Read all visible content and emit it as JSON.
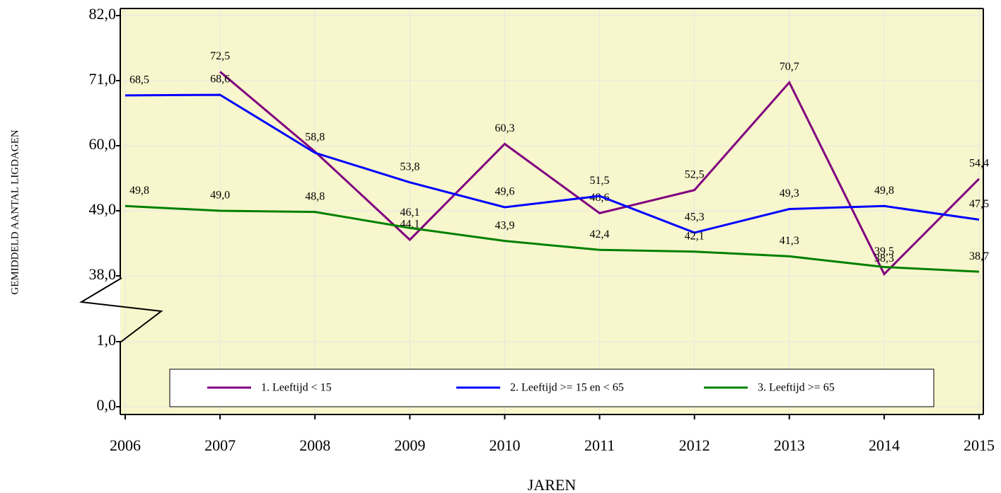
{
  "chart_data": {
    "type": "line",
    "y_label": "GEMIDDELD AANTAL LIGDAGEN",
    "x_label": "JAREN",
    "categories": [
      "2006",
      "2007",
      "2008",
      "2009",
      "2010",
      "2011",
      "2012",
      "2013",
      "2014",
      "2015"
    ],
    "ylim": [
      0,
      82
    ],
    "axis_break": [
      1,
      38
    ],
    "yticks": [
      {
        "value": 0,
        "label": "0,0"
      },
      {
        "value": 1,
        "label": "1,0"
      },
      {
        "value": 38,
        "label": "38,0"
      },
      {
        "value": 49,
        "label": "49,0"
      },
      {
        "value": 60,
        "label": "60,0"
      },
      {
        "value": 71,
        "label": "71,0"
      },
      {
        "value": 82,
        "label": "82,0"
      }
    ],
    "grid": true,
    "series": [
      {
        "name": "1. Leeftijd < 15",
        "color": "#800080",
        "values": [
          null,
          72.5,
          59.0,
          44.1,
          60.3,
          48.6,
          52.5,
          70.7,
          38.3,
          54.4
        ],
        "value_labels": [
          null,
          "72,5",
          null,
          "44,1",
          "60,3",
          "48,6",
          "52,5",
          "70,7",
          "38,3",
          "54,4"
        ]
      },
      {
        "name": "2. Leeftijd >= 15 en < 65",
        "color": "#0000ff",
        "values": [
          68.5,
          68.6,
          58.8,
          53.8,
          49.6,
          51.5,
          45.3,
          49.3,
          49.8,
          47.5
        ],
        "value_labels": [
          "68,5",
          "68,6",
          "58,8",
          "53,8",
          "49,6",
          "51,5",
          "45,3",
          "49,3",
          "49,8",
          "47,5"
        ]
      },
      {
        "name": "3. Leeftijd >= 65",
        "color": "#008000",
        "values": [
          49.8,
          49.0,
          48.8,
          46.1,
          43.9,
          42.4,
          42.1,
          41.3,
          39.5,
          38.7
        ],
        "value_labels": [
          "49,8",
          "49,0",
          "48,8",
          "46,1",
          "43,9",
          "42,4",
          "42,1",
          "41,3",
          "39,5",
          "38,7"
        ]
      }
    ]
  }
}
